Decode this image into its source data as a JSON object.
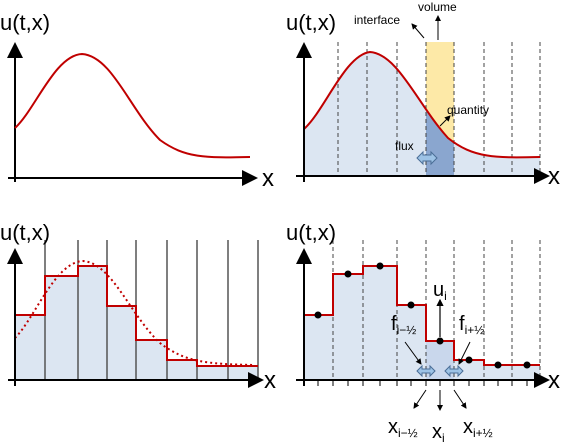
{
  "panels": {
    "top_left": {
      "ylabel": "u(t,x)",
      "xlabel": "x"
    },
    "top_right": {
      "ylabel": "u(t,x)",
      "xlabel": "x",
      "annotations": {
        "volume": "volume",
        "interface": "interface",
        "quantity": "quantity",
        "flux": "flux"
      }
    },
    "bottom_left": {
      "ylabel": "u(t,x)",
      "xlabel": "x"
    },
    "bottom_right": {
      "ylabel": "u(t,x)",
      "xlabel": "x",
      "labels": {
        "u_main": "u",
        "u_sub": "i",
        "f_left_main": "f",
        "f_left_sub": "i−½",
        "f_right_main": "f",
        "f_right_sub": "i+½",
        "x_left_main": "x",
        "x_left_sub": "i−½",
        "x_mid_main": "x",
        "x_mid_sub": "i",
        "x_right_main": "x",
        "x_right_sub": "i+½"
      }
    }
  },
  "colors": {
    "curve": "#c00000",
    "fill": "#dce6f2",
    "axis": "#000000",
    "volume": "#fde9a7",
    "cell_highlight": "#8aa6cf",
    "arrow": "#9dc3e6"
  }
}
